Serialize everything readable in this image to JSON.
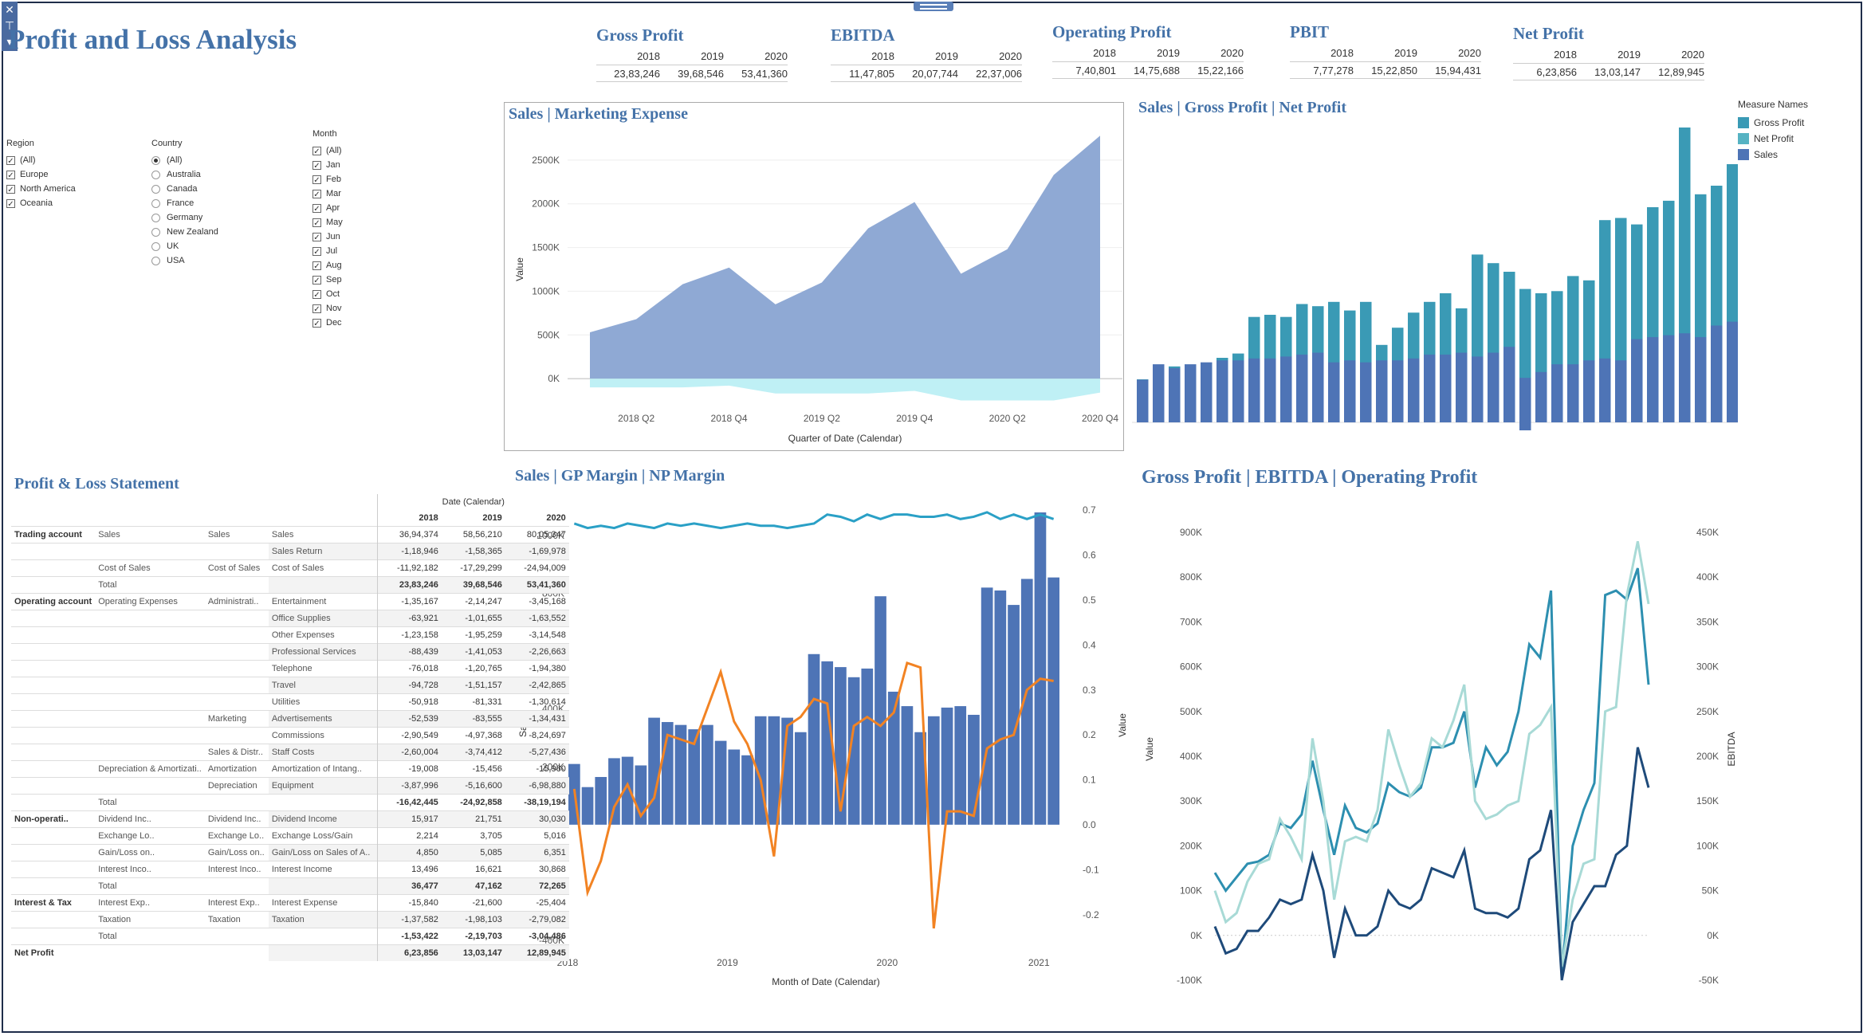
{
  "title": "Profit and Loss Analysis",
  "kpis": [
    {
      "title": "Gross Profit",
      "years": [
        "2018",
        "2019",
        "2020"
      ],
      "values": [
        "23,83,246",
        "39,68,546",
        "53,41,360"
      ]
    },
    {
      "title": "EBITDA",
      "years": [
        "2018",
        "2019",
        "2020"
      ],
      "values": [
        "11,47,805",
        "20,07,744",
        "22,37,006"
      ]
    },
    {
      "title": "Operating Profit",
      "years": [
        "2018",
        "2019",
        "2020"
      ],
      "values": [
        "7,40,801",
        "14,75,688",
        "15,22,166"
      ]
    },
    {
      "title": "PBIT",
      "years": [
        "2018",
        "2019",
        "2020"
      ],
      "values": [
        "7,77,278",
        "15,22,850",
        "15,94,431"
      ]
    },
    {
      "title": "Net Profit",
      "years": [
        "2018",
        "2019",
        "2020"
      ],
      "values": [
        "6,23,856",
        "13,03,147",
        "12,89,945"
      ]
    }
  ],
  "filters": {
    "region": {
      "title": "Region",
      "items": [
        "(All)",
        "Europe",
        "North America",
        "Oceania"
      ]
    },
    "country": {
      "title": "Country",
      "items": [
        "(All)",
        "Australia",
        "Canada",
        "France",
        "Germany",
        "New Zealand",
        "UK",
        "USA"
      ],
      "selected": "(All)"
    },
    "month": {
      "title": "Month",
      "items": [
        "(All)",
        "Jan",
        "Feb",
        "Mar",
        "Apr",
        "May",
        "Jun",
        "Jul",
        "Aug",
        "Sep",
        "Oct",
        "Nov",
        "Dec"
      ]
    }
  },
  "charts_titles": {
    "area": "Sales | Marketing Expense",
    "stack": "Sales | Gross Profit | Net Profit",
    "pl": "Profit & Loss Statement",
    "margin": "Sales | GP Margin | NP Margin",
    "lines": "Gross Profit | EBITDA | Operating Profit"
  },
  "legend": {
    "title": "Measure Names",
    "items": [
      {
        "label": "Gross Profit",
        "color": "#3a9ab5"
      },
      {
        "label": "Net Profit",
        "color": "#56b3c3"
      },
      {
        "label": "Sales",
        "color": "#4e74b6"
      }
    ]
  },
  "pl_statement": {
    "header": "Date (Calendar)",
    "years": [
      "2018",
      "2019",
      "2020"
    ],
    "rows": [
      [
        "Trading account",
        "Sales",
        "Sales",
        "Sales",
        "36,94,374",
        "58,56,210",
        "80,05,347"
      ],
      [
        "",
        "",
        "",
        "Sales Return",
        "-1,18,946",
        "-1,58,365",
        "-1,69,978"
      ],
      [
        "",
        "Cost of Sales",
        "Cost of Sales",
        "Cost of Sales",
        "-11,92,182",
        "-17,29,299",
        "-24,94,009"
      ],
      [
        "",
        "Total",
        "",
        "",
        "23,83,246",
        "39,68,546",
        "53,41,360"
      ],
      [
        "Operating account",
        "Operating Expenses",
        "Administrati..",
        "Entertainment",
        "-1,35,167",
        "-2,14,247",
        "-3,45,168"
      ],
      [
        "",
        "",
        "",
        "Office Supplies",
        "-63,921",
        "-1,01,655",
        "-1,63,552"
      ],
      [
        "",
        "",
        "",
        "Other Expenses",
        "-1,23,158",
        "-1,95,259",
        "-3,14,548"
      ],
      [
        "",
        "",
        "",
        "Professional Services",
        "-88,439",
        "-1,41,053",
        "-2,26,663"
      ],
      [
        "",
        "",
        "",
        "Telephone",
        "-76,018",
        "-1,20,765",
        "-1,94,380"
      ],
      [
        "",
        "",
        "",
        "Travel",
        "-94,728",
        "-1,51,157",
        "-2,42,865"
      ],
      [
        "",
        "",
        "",
        "Utilities",
        "-50,918",
        "-81,331",
        "-1,30,614"
      ],
      [
        "",
        "",
        "Marketing",
        "Advertisements",
        "-52,539",
        "-83,555",
        "-1,34,431"
      ],
      [
        "",
        "",
        "",
        "Commissions",
        "-2,90,549",
        "-4,97,368",
        "-8,24,697"
      ],
      [
        "",
        "",
        "Sales & Distr..",
        "Staff Costs",
        "-2,60,004",
        "-3,74,412",
        "-5,27,436"
      ],
      [
        "",
        "Depreciation & Amortizati..",
        "Amortization",
        "Amortization of Intang..",
        "-19,008",
        "-15,456",
        "-15,960"
      ],
      [
        "",
        "",
        "Depreciation",
        "Equipment",
        "-3,87,996",
        "-5,16,600",
        "-6,98,880"
      ],
      [
        "",
        "Total",
        "",
        "",
        "-16,42,445",
        "-24,92,858",
        "-38,19,194"
      ],
      [
        "Non-operati..",
        "Dividend Inc..",
        "Dividend Inc..",
        "Dividend Income",
        "15,917",
        "21,751",
        "30,030"
      ],
      [
        "",
        "Exchange Lo..",
        "Exchange Lo..",
        "Exchange Loss/Gain",
        "2,214",
        "3,705",
        "5,016"
      ],
      [
        "",
        "Gain/Loss on..",
        "Gain/Loss on..",
        "Gain/Loss on Sales of A..",
        "4,850",
        "5,085",
        "6,351"
      ],
      [
        "",
        "Interest Inco..",
        "Interest Inco..",
        "Interest Income",
        "13,496",
        "16,621",
        "30,868"
      ],
      [
        "",
        "Total",
        "",
        "",
        "36,477",
        "47,162",
        "72,265"
      ],
      [
        "Interest & Tax",
        "Interest Exp..",
        "Interest Exp..",
        "Interest Expense",
        "-15,840",
        "-21,600",
        "-25,404"
      ],
      [
        "",
        "Taxation",
        "Taxation",
        "Taxation",
        "-1,37,582",
        "-1,98,103",
        "-2,79,082"
      ],
      [
        "",
        "Total",
        "",
        "",
        "-1,53,422",
        "-2,19,703",
        "-3,04,486"
      ],
      [
        "Net Profit",
        "",
        "",
        "",
        "6,23,856",
        "13,03,147",
        "12,89,945"
      ]
    ]
  },
  "chart_data": [
    {
      "type": "area",
      "title": "Sales | Marketing Expense",
      "xlabel": "Quarter of Date (Calendar)",
      "ylabel": "Value",
      "categories": [
        "2018 Q1",
        "2018 Q2",
        "2018 Q3",
        "2018 Q4",
        "2019 Q1",
        "2019 Q2",
        "2019 Q3",
        "2019 Q4",
        "2020 Q1",
        "2020 Q2",
        "2020 Q3",
        "2020 Q4"
      ],
      "x_ticks": [
        "2018 Q2",
        "2018 Q4",
        "2019 Q2",
        "2019 Q4",
        "2020 Q2",
        "2020 Q4"
      ],
      "y_ticks": [
        "0K",
        "500K",
        "1000K",
        "1500K",
        "2000K",
        "2500K"
      ],
      "ylim": [
        -300000,
        2800000
      ],
      "series": [
        {
          "values": [
            530000,
            680000,
            1080000,
            1270000,
            850000,
            1100000,
            1720000,
            2020000,
            1200000,
            1480000,
            2330000,
            2780000
          ],
          "color": "#8fa9d4"
        },
        {
          "values": [
            -100000,
            -100000,
            -100000,
            -80000,
            -170000,
            -170000,
            -170000,
            -140000,
            -250000,
            -250000,
            -250000,
            -160000
          ],
          "color": "#bff0f5"
        }
      ]
    },
    {
      "type": "bar",
      "title": "Sales | Gross Profit | Net Profit",
      "stacked": true,
      "series": [
        {
          "name": "Sales",
          "values": [
            220,
            300,
            280,
            300,
            310,
            320,
            320,
            330,
            330,
            340,
            350,
            360,
            310,
            320,
            310,
            320,
            320,
            330,
            350,
            350,
            360,
            340,
            360,
            390,
            230,
            260,
            300,
            300,
            320,
            330,
            320,
            430,
            440,
            450,
            460,
            440,
            500,
            520
          ],
          "color": "#4e74b6"
        },
        {
          "name": "Gross Profit",
          "values": [
            200,
            170,
            260,
            230,
            260,
            300,
            320,
            490,
            500,
            490,
            550,
            540,
            560,
            520,
            560,
            360,
            440,
            510,
            560,
            600,
            530,
            780,
            740,
            700,
            620,
            600,
            610,
            680,
            660,
            940,
            950,
            920,
            1000,
            1030,
            1500,
            1060,
            1100,
            1200
          ],
          "color": "#3a9ab5"
        }
      ]
    },
    {
      "type": "bar",
      "title": "Sales | GP Margin | NP Margin",
      "xlabel": "Month of Date (Calendar)",
      "ylabel": "Sales",
      "y2label": "Value",
      "x_ticks": [
        "2018",
        "2019",
        "2020",
        "2021"
      ],
      "y_ticks": [
        "-400K",
        "-200K",
        "0K",
        "200K",
        "400K",
        "600K",
        "800K",
        "1000K"
      ],
      "y2_ticks": [
        "-0.2",
        "-0.1",
        "0.0",
        "0.1",
        "0.2",
        "0.3",
        "0.4",
        "0.5",
        "0.6",
        "0.7"
      ],
      "ylim": [
        -400000,
        1000000
      ],
      "y2lim": [
        -0.2,
        0.7
      ],
      "sales": [
        210000,
        130000,
        165000,
        230000,
        235000,
        205000,
        370000,
        355000,
        345000,
        330000,
        345000,
        290000,
        260000,
        240000,
        375000,
        375000,
        370000,
        320000,
        590000,
        565000,
        545000,
        510000,
        540000,
        790000,
        460000,
        410000,
        320000,
        375000,
        405000,
        410000,
        380000,
        820000,
        810000,
        760000,
        850000,
        1080000,
        855000
      ],
      "gp_margin": [
        0.67,
        0.66,
        0.665,
        0.66,
        0.67,
        0.665,
        0.66,
        0.67,
        0.665,
        0.67,
        0.665,
        0.66,
        0.665,
        0.67,
        0.665,
        0.665,
        0.66,
        0.665,
        0.67,
        0.69,
        0.685,
        0.675,
        0.69,
        0.68,
        0.69,
        0.69,
        0.685,
        0.685,
        0.69,
        0.68,
        0.685,
        0.695,
        0.68,
        0.69,
        0.68,
        0.69,
        0.68
      ],
      "np_margin": [
        0.08,
        -0.15,
        -0.08,
        0.04,
        0.09,
        0.02,
        0.06,
        0.2,
        0.19,
        0.18,
        0.26,
        0.34,
        0.23,
        0.18,
        0.1,
        -0.07,
        0.22,
        0.24,
        0.28,
        0.27,
        0.03,
        0.22,
        0.24,
        0.22,
        0.25,
        0.36,
        0.35,
        -0.23,
        0.03,
        0.03,
        0.02,
        0.17,
        0.19,
        0.2,
        0.3,
        0.325,
        0.32
      ],
      "series_colors": {
        "sales": "#4e74b6",
        "gp": "#2aa0c6",
        "np": "#f28323"
      }
    },
    {
      "type": "line",
      "title": "Gross Profit | EBITDA | Operating Profit",
      "ylabel": "Value",
      "y2label": "EBITDA",
      "y_ticks": [
        "-100K",
        "0K",
        "100K",
        "200K",
        "300K",
        "400K",
        "500K",
        "600K",
        "700K",
        "800K",
        "900K"
      ],
      "y2_ticks": [
        "-50K",
        "0K",
        "50K",
        "100K",
        "150K",
        "200K",
        "250K",
        "300K",
        "350K",
        "400K",
        "450K"
      ],
      "ylim": [
        -100000,
        900000
      ],
      "y2lim": [
        -50000,
        450000
      ],
      "series": [
        {
          "values": [
            140000,
            100000,
            130000,
            160000,
            165000,
            180000,
            250000,
            240000,
            270000,
            390000,
            280000,
            180000,
            290000,
            240000,
            230000,
            250000,
            340000,
            320000,
            310000,
            330000,
            420000,
            420000,
            430000,
            500000,
            330000,
            420000,
            380000,
            410000,
            500000,
            650000,
            620000,
            770000,
            -90000,
            200000,
            280000,
            340000,
            760000,
            770000,
            750000,
            820000,
            560000
          ],
          "color": "#2d8fb0"
        },
        {
          "values": [
            100000,
            30000,
            50000,
            120000,
            160000,
            170000,
            260000,
            220000,
            170000,
            440000,
            300000,
            80000,
            210000,
            220000,
            210000,
            280000,
            460000,
            380000,
            310000,
            340000,
            440000,
            420000,
            480000,
            560000,
            300000,
            260000,
            270000,
            290000,
            300000,
            450000,
            470000,
            510000,
            -70000,
            80000,
            160000,
            170000,
            500000,
            510000,
            760000,
            880000,
            740000
          ],
          "color": "#a8dad6"
        },
        {
          "values": [
            20000,
            -40000,
            -30000,
            10000,
            10000,
            40000,
            80000,
            70000,
            80000,
            180000,
            100000,
            -50000,
            60000,
            0,
            0,
            20000,
            100000,
            70000,
            60000,
            80000,
            150000,
            140000,
            130000,
            190000,
            60000,
            50000,
            50000,
            40000,
            60000,
            170000,
            190000,
            280000,
            -100000,
            30000,
            70000,
            110000,
            110000,
            180000,
            200000,
            420000,
            330000
          ],
          "color": "#1e4a7a"
        }
      ]
    }
  ]
}
